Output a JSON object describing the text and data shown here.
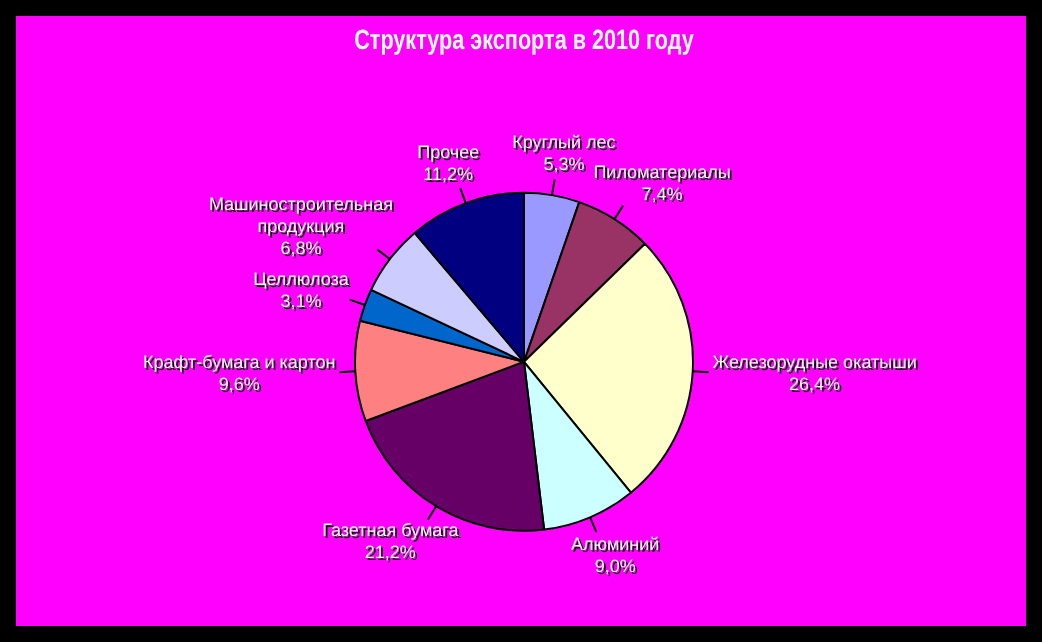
{
  "chart_data": {
    "type": "pie",
    "title": "Структура экспорта в 2010 году",
    "categories": [
      "Круглый лес",
      "Пиломатериалы",
      "Железорудные окатыши",
      "Алюминий",
      "Газетная бумага",
      "Крафт-бумага и картон",
      "Целлюлоза",
      "Машиностроительная продукция",
      "Прочее"
    ],
    "values": [
      5.3,
      7.4,
      26.4,
      9.0,
      21.2,
      9.6,
      3.1,
      6.8,
      11.2
    ],
    "value_labels": [
      "5,3%",
      "7,4%",
      "26,4%",
      "9,0%",
      "21,2%",
      "9,6%",
      "3,1%",
      "6,8%",
      "11,2%"
    ],
    "colors": [
      "#9999ff",
      "#993366",
      "#ffffcc",
      "#ccffff",
      "#660066",
      "#ff8080",
      "#0066cc",
      "#ccccff",
      "#000080"
    ],
    "legend": false
  }
}
